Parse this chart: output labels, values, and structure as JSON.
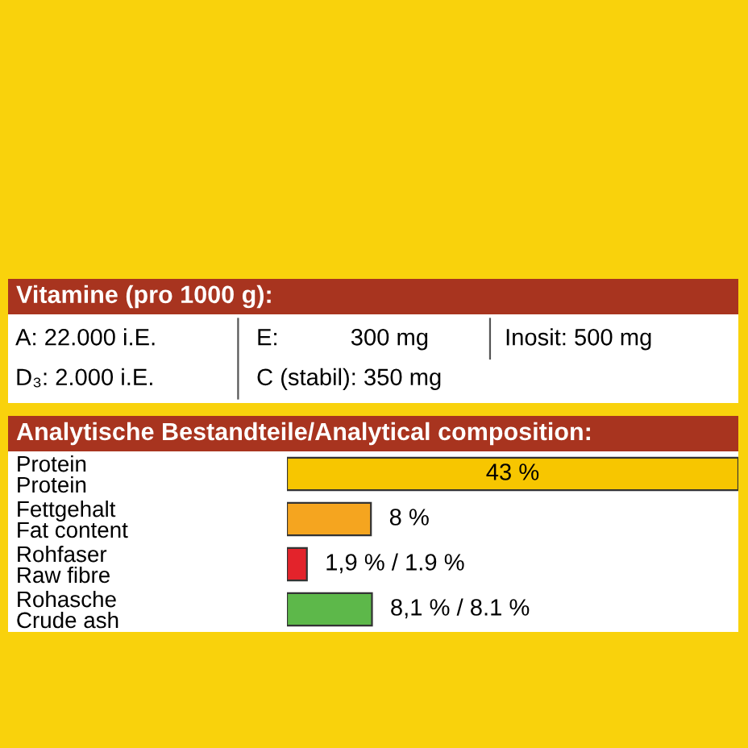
{
  "chart_data": [
    {
      "type": "other",
      "title": "Vitamine (pro 1000 g):",
      "annotations": [
        "A: 22.000 i.E.",
        "D₃: 2.000 i.E.",
        "E:           300 mg",
        "C (stabil): 350 mg",
        "Inosit: 500 mg"
      ]
    },
    {
      "type": "bar",
      "orientation": "horizontal",
      "title": "Analytische Bestandteile/Analytical composition:",
      "categories": [
        "Protein\nProtein",
        "Fettgehalt\nFat content",
        "Rohfaser\nRaw fibre",
        "Rohasche\nCrude ash"
      ],
      "values": [
        43,
        8,
        1.9,
        8.1
      ],
      "colors": [
        "#f7c600",
        "#f5a51f",
        "#e3232b",
        "#5db84a"
      ],
      "value_labels": [
        "43 %",
        "8 %",
        "1,9 % / 1.9 %",
        "8,1 % / 8.1 %"
      ]
    }
  ]
}
